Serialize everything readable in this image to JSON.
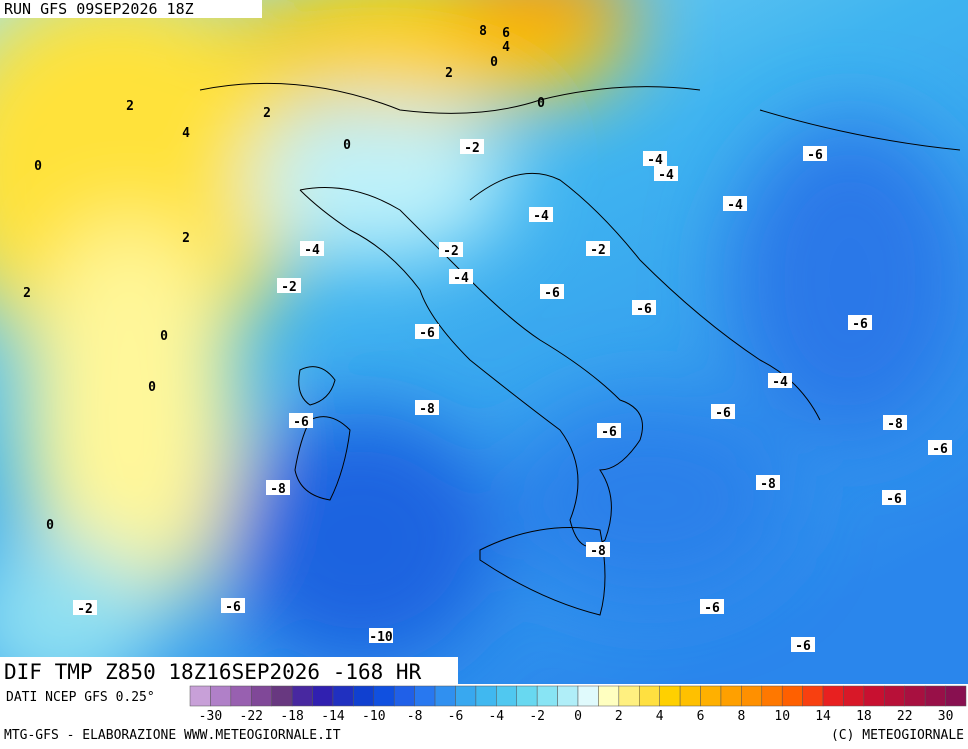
{
  "header": {
    "run": "RUN GFS 09SEP2026 18Z"
  },
  "title": "DIF TMP Z850 18Z16SEP2026 -168 HR",
  "source": "DATI NCEP GFS 0.25°",
  "footer": {
    "left": "MTG-GFS - ELABORAZIONE WWW.METEOGIORNALE.IT",
    "right": "(C) METEOGIORNALE"
  },
  "contour_labels": [
    8,
    6,
    4,
    0,
    2,
    0,
    2,
    2,
    4,
    0,
    -2,
    -4,
    -4,
    -6,
    0,
    -4,
    -4,
    2,
    -4,
    -2,
    -2,
    -4,
    -2,
    2,
    -6,
    -6,
    -6,
    0,
    -6,
    -4,
    0,
    -8,
    -6,
    -6,
    -8,
    -6,
    -6,
    -8,
    -8,
    -6,
    0,
    -8,
    -2,
    -6,
    -6,
    -10,
    -6
  ],
  "colorbar": {
    "labels": [
      -30,
      -22,
      -18,
      -14,
      -10,
      -8,
      -6,
      -4,
      -2,
      0,
      2,
      4,
      6,
      8,
      10,
      14,
      18,
      22,
      30
    ],
    "colors": [
      "#c8a0d8",
      "#b080c8",
      "#9860b0",
      "#804898",
      "#683880",
      "#4828a0",
      "#3020b0",
      "#2030c0",
      "#1040d0",
      "#1050e0",
      "#2060e8",
      "#2878f0",
      "#3090f0",
      "#38a8f0",
      "#40b8f0",
      "#50c8f0",
      "#68d8f0",
      "#88e4f4",
      "#b0eef8",
      "#e0fafc",
      "#ffffc0",
      "#fff080",
      "#ffe040",
      "#ffd000",
      "#ffc000",
      "#ffb000",
      "#ffa000",
      "#ff9000",
      "#ff7800",
      "#ff6000",
      "#f84010",
      "#e82020",
      "#d81828",
      "#c81030",
      "#b81038",
      "#a81040",
      "#981048",
      "#881050"
    ]
  }
}
